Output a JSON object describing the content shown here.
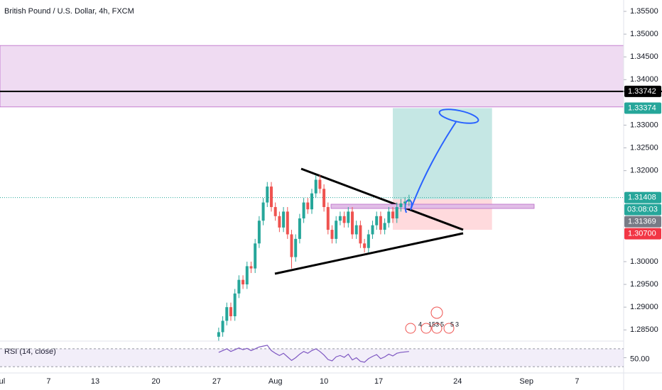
{
  "chart_data": {
    "type": "candlestick",
    "title": "British Pound / U.S. Dollar, 4h, FXCM",
    "up_color": "#26a69a",
    "down_color": "#ef5350",
    "x": [
      108,
      110,
      112,
      114,
      116,
      118,
      120,
      122,
      124,
      126,
      128,
      130,
      132,
      134,
      136,
      138,
      140,
      142,
      144,
      146,
      148,
      150,
      152,
      154,
      156,
      158,
      160,
      162,
      164,
      166,
      168,
      170,
      172,
      174,
      176,
      178,
      180,
      182,
      184,
      186,
      188,
      190,
      192,
      194,
      196,
      198,
      200,
      202
    ],
    "open": [
      1.2835,
      1.2845,
      1.287,
      1.29,
      1.288,
      1.293,
      1.296,
      1.295,
      1.299,
      1.2985,
      1.304,
      1.309,
      1.313,
      1.3165,
      1.312,
      1.31,
      1.3075,
      1.311,
      1.306,
      1.301,
      1.305,
      1.3095,
      1.313,
      1.3115,
      1.315,
      1.318,
      1.316,
      1.312,
      1.307,
      1.305,
      1.309,
      1.31,
      1.3085,
      1.311,
      1.306,
      1.308,
      1.304,
      1.303,
      1.306,
      1.308,
      1.31,
      1.307,
      1.3085,
      1.311,
      1.3095,
      1.312,
      1.3128,
      1.3132
    ],
    "high": [
      1.2855,
      1.288,
      1.291,
      1.291,
      1.294,
      1.297,
      1.297,
      1.3,
      1.3,
      1.305,
      1.31,
      1.314,
      1.3175,
      1.3175,
      1.313,
      1.311,
      1.312,
      1.312,
      1.307,
      1.306,
      1.3105,
      1.314,
      1.314,
      1.316,
      1.319,
      1.319,
      1.317,
      1.313,
      1.308,
      1.31,
      1.311,
      1.311,
      1.312,
      1.312,
      1.309,
      1.309,
      1.305,
      1.307,
      1.309,
      1.311,
      1.311,
      1.3095,
      1.312,
      1.312,
      1.313,
      1.3138,
      1.3142,
      1.3147
    ],
    "low": [
      1.2825,
      1.2835,
      1.286,
      1.287,
      1.287,
      1.292,
      1.294,
      1.294,
      1.2975,
      1.2975,
      1.303,
      1.308,
      1.312,
      1.311,
      1.309,
      1.3065,
      1.3065,
      1.305,
      1.2985,
      1.3,
      1.304,
      1.3085,
      1.3105,
      1.3105,
      1.314,
      1.315,
      1.311,
      1.306,
      1.304,
      1.304,
      1.308,
      1.3075,
      1.3075,
      1.305,
      1.305,
      1.303,
      1.302,
      1.302,
      1.305,
      1.307,
      1.306,
      1.306,
      1.3075,
      1.3085,
      1.3085,
      1.311,
      1.3118,
      1.3122
    ],
    "close": [
      1.2845,
      1.287,
      1.29,
      1.288,
      1.293,
      1.296,
      1.295,
      1.299,
      1.2985,
      1.304,
      1.309,
      1.313,
      1.3165,
      1.312,
      1.31,
      1.3075,
      1.311,
      1.306,
      1.301,
      1.305,
      1.3095,
      1.313,
      1.3115,
      1.315,
      1.318,
      1.316,
      1.312,
      1.307,
      1.305,
      1.309,
      1.31,
      1.3085,
      1.311,
      1.306,
      1.308,
      1.304,
      1.303,
      1.306,
      1.308,
      1.31,
      1.307,
      1.3085,
      1.311,
      1.3095,
      1.312,
      1.3128,
      1.3132,
      1.3137
    ],
    "xlim": [
      0,
      308
    ],
    "ylim": [
      1.2827,
      1.3575
    ],
    "xticks": [
      {
        "value": 1,
        "label": "ul"
      },
      {
        "value": 24,
        "label": "7"
      },
      {
        "value": 47,
        "label": "13"
      },
      {
        "value": 77,
        "label": "20"
      },
      {
        "value": 107,
        "label": "27"
      },
      {
        "value": 136,
        "label": "Aug"
      },
      {
        "value": 160,
        "label": "10"
      },
      {
        "value": 187,
        "label": "17"
      },
      {
        "value": 226,
        "label": "24"
      },
      {
        "value": 260,
        "label": "Sep"
      },
      {
        "value": 285,
        "label": "7"
      }
    ],
    "yticks": [
      {
        "value": 1.355,
        "label": "1.35500"
      },
      {
        "value": 1.35,
        "label": "1.35000"
      },
      {
        "value": 1.345,
        "label": "1.34500"
      },
      {
        "value": 1.34,
        "label": "1.34000"
      },
      {
        "value": 1.33,
        "label": "1.33000"
      },
      {
        "value": 1.325,
        "label": "1.32500"
      },
      {
        "value": 1.32,
        "label": "1.32000"
      },
      {
        "value": 1.3,
        "label": "1.30000"
      },
      {
        "value": 1.295,
        "label": "1.29500"
      },
      {
        "value": 1.29,
        "label": "1.29000"
      },
      {
        "value": 1.285,
        "label": "1.28500"
      }
    ],
    "zone": [
      1.334,
      1.3475
    ],
    "zone_color": "#e1bee7",
    "level": 1.33742,
    "current_price": 1.31408,
    "position": {
      "start": 194,
      "end": 243,
      "target": 1.33374,
      "entry": 1.31369,
      "stop": 1.307
    },
    "price_labels": [
      {
        "value": 1.33742,
        "label": "1.33742",
        "color": "#000000"
      },
      {
        "value": 1.33374,
        "label": "1.33374",
        "color": "#26a69a"
      },
      {
        "value": 1.31408,
        "label": "1.31408",
        "color": "#26a69a"
      },
      {
        "value": 1.31369,
        "label": "1.31369",
        "color": "#787b86"
      },
      {
        "value": 1.307,
        "label": "1.30700",
        "color": "#f23645"
      }
    ],
    "countdown": "03:08:03",
    "event_labels": [
      "4",
      "153",
      "5",
      "5",
      "3"
    ],
    "rsi": {
      "title": "RSI (14, close)",
      "color": "#7e57c2",
      "ylim": [
        0,
        100
      ],
      "bands": [
        30,
        70
      ],
      "yticks": [
        {
          "value": 50,
          "label": "50.00"
        }
      ],
      "values": [
        62,
        66,
        70,
        64,
        68,
        72,
        68,
        71,
        66,
        70,
        74,
        76,
        78,
        66,
        60,
        55,
        60,
        52,
        44,
        50,
        58,
        64,
        60,
        66,
        70,
        64,
        56,
        46,
        43,
        52,
        55,
        51,
        58,
        45,
        50,
        42,
        40,
        48,
        53,
        57,
        48,
        52,
        58,
        54,
        60,
        62,
        63,
        64
      ]
    }
  }
}
